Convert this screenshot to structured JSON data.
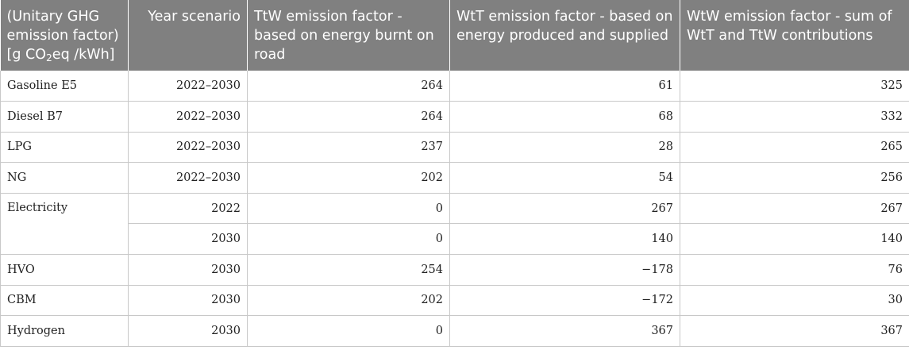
{
  "table": {
    "headers": [
      {
        "pre": "(Unitary GHG emission factor) [g CO",
        "sub": "2",
        "post": "eq /kWh]"
      },
      {
        "text": "Year scenario"
      },
      {
        "text": "TtW emission factor - based on energy burnt on road"
      },
      {
        "text": "WtT emission factor - based on energy produced and supplied"
      },
      {
        "text": "WtW emission factor - sum of WtT and TtW contributions"
      }
    ],
    "rows": [
      {
        "fuel": "Gasoline E5",
        "year": "2022–2030",
        "ttw": "264",
        "wtt": "61",
        "wtw": "325"
      },
      {
        "fuel": "Diesel B7",
        "year": "2022–2030",
        "ttw": "264",
        "wtt": "68",
        "wtw": "332"
      },
      {
        "fuel": "LPG",
        "year": "2022–2030",
        "ttw": "237",
        "wtt": "28",
        "wtw": "265"
      },
      {
        "fuel": "NG",
        "year": "2022–2030",
        "ttw": "202",
        "wtt": "54",
        "wtw": "256"
      },
      {
        "fuel": "Electricity",
        "year": "2022",
        "ttw": "0",
        "wtt": "267",
        "wtw": "267"
      },
      {
        "fuel": "",
        "year": "2030",
        "ttw": "0",
        "wtt": "140",
        "wtw": "140"
      },
      {
        "fuel": "HVO",
        "year": "2030",
        "ttw": "254",
        "wtt": "−178",
        "wtw": "76"
      },
      {
        "fuel": "CBM",
        "year": "2030",
        "ttw": "202",
        "wtt": "−172",
        "wtw": "30"
      },
      {
        "fuel": "Hydrogen",
        "year": "2030",
        "ttw": "0",
        "wtt": "367",
        "wtw": "367"
      }
    ]
  }
}
